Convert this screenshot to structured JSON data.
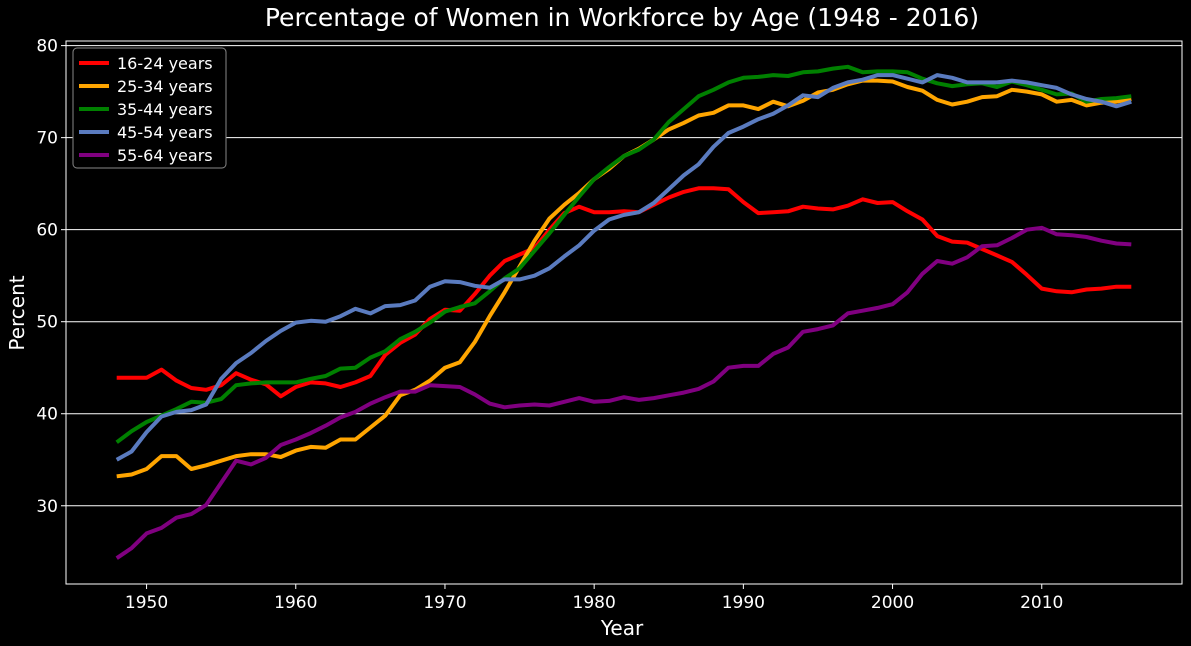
{
  "chart_data": {
    "type": "line",
    "title": "Percentage of Women in Workforce by Age (1948 - 2016)",
    "xlabel": "Year",
    "ylabel": "Percent",
    "xlim": [
      1944.6,
      2019.4
    ],
    "ylim": [
      21.5,
      80.5
    ],
    "xticks": [
      1950,
      1960,
      1970,
      1980,
      1990,
      2000,
      2010
    ],
    "yticks": [
      30,
      40,
      50,
      60,
      70,
      80
    ],
    "grid": "horizontal",
    "legend_position": "top-left",
    "x_start": 1948,
    "series": [
      {
        "name": "16-24 years",
        "color": "#ff0000",
        "values": [
          43.9,
          43.9,
          43.9,
          44.8,
          43.6,
          42.8,
          42.6,
          43.1,
          44.4,
          43.7,
          43.2,
          41.9,
          42.9,
          43.4,
          43.3,
          42.9,
          43.4,
          44.1,
          46.4,
          47.7,
          48.6,
          50.3,
          51.3,
          51.2,
          53.0,
          55.0,
          56.6,
          57.3,
          58.0,
          60.0,
          61.8,
          62.5,
          61.9,
          61.9,
          62.0,
          61.9,
          62.7,
          63.5,
          64.1,
          64.5,
          64.5,
          64.4,
          63.0,
          61.8,
          61.9,
          62.0,
          62.5,
          62.3,
          62.2,
          62.6,
          63.3,
          62.9,
          63.0,
          62.0,
          61.1,
          59.3,
          58.7,
          58.6,
          57.9,
          57.2,
          56.5,
          55.1,
          53.6,
          53.3,
          53.2,
          53.5,
          53.6,
          53.8,
          53.8
        ]
      },
      {
        "name": "25-34 years",
        "color": "#ffa500",
        "values": [
          33.2,
          33.4,
          34.0,
          35.4,
          35.4,
          34.0,
          34.4,
          34.9,
          35.4,
          35.6,
          35.6,
          35.3,
          36.0,
          36.4,
          36.3,
          37.2,
          37.2,
          38.5,
          39.8,
          42.0,
          42.6,
          43.6,
          45.0,
          45.6,
          47.8,
          50.6,
          53.2,
          56.0,
          58.8,
          61.2,
          62.7,
          64.0,
          65.5,
          66.6,
          68.0,
          68.8,
          69.8,
          70.9,
          71.6,
          72.4,
          72.7,
          73.5,
          73.5,
          73.1,
          73.9,
          73.4,
          74.0,
          74.9,
          75.2,
          75.8,
          76.2,
          76.2,
          76.1,
          75.5,
          75.1,
          74.1,
          73.6,
          73.9,
          74.4,
          74.5,
          75.2,
          75.0,
          74.7,
          73.9,
          74.1,
          73.5,
          73.8,
          73.9,
          74.2
        ]
      },
      {
        "name": "35-44 years",
        "color": "#008000",
        "values": [
          36.9,
          38.1,
          39.1,
          39.8,
          40.5,
          41.3,
          41.2,
          41.6,
          43.1,
          43.3,
          43.4,
          43.4,
          43.4,
          43.8,
          44.1,
          44.9,
          45.0,
          46.1,
          46.8,
          48.1,
          48.9,
          49.9,
          51.1,
          51.6,
          52.0,
          53.3,
          54.7,
          55.8,
          57.7,
          59.6,
          61.6,
          63.6,
          65.5,
          66.8,
          68.0,
          68.7,
          69.8,
          71.7,
          73.1,
          74.5,
          75.2,
          76.0,
          76.5,
          76.6,
          76.8,
          76.7,
          77.1,
          77.2,
          77.5,
          77.7,
          77.1,
          77.2,
          77.2,
          77.1,
          76.4,
          75.9,
          75.6,
          75.8,
          75.9,
          75.5,
          76.1,
          75.7,
          75.2,
          74.7,
          74.8,
          73.9,
          74.2,
          74.3,
          74.5
        ]
      },
      {
        "name": "45-54 years",
        "color": "#5a7bbf",
        "values": [
          35.0,
          35.9,
          38.0,
          39.7,
          40.2,
          40.4,
          41.0,
          43.8,
          45.5,
          46.6,
          47.9,
          49.0,
          49.9,
          50.1,
          50.0,
          50.6,
          51.4,
          50.9,
          51.7,
          51.8,
          52.3,
          53.8,
          54.4,
          54.3,
          53.9,
          53.7,
          54.6,
          54.6,
          55.0,
          55.8,
          57.1,
          58.3,
          59.9,
          61.1,
          61.6,
          61.9,
          62.9,
          64.4,
          65.9,
          67.1,
          69.0,
          70.5,
          71.2,
          72.0,
          72.6,
          73.5,
          74.6,
          74.4,
          75.4,
          76.0,
          76.3,
          76.8,
          76.8,
          76.4,
          76.0,
          76.8,
          76.5,
          76.0,
          76.0,
          76.0,
          76.2,
          76.0,
          75.7,
          75.4,
          74.7,
          74.2,
          73.9,
          73.4,
          73.9
        ]
      },
      {
        "name": "55-64 years",
        "color": "#800080",
        "values": [
          24.3,
          25.4,
          27.0,
          27.6,
          28.7,
          29.1,
          30.1,
          32.5,
          34.9,
          34.5,
          35.2,
          36.6,
          37.2,
          37.9,
          38.7,
          39.6,
          40.2,
          41.1,
          41.8,
          42.4,
          42.4,
          43.1,
          43.0,
          42.9,
          42.1,
          41.1,
          40.7,
          40.9,
          41.0,
          40.9,
          41.3,
          41.7,
          41.3,
          41.4,
          41.8,
          41.5,
          41.7,
          42.0,
          42.3,
          42.7,
          43.5,
          45.0,
          45.2,
          45.2,
          46.5,
          47.2,
          48.9,
          49.2,
          49.6,
          50.9,
          51.2,
          51.5,
          51.9,
          53.2,
          55.2,
          56.6,
          56.3,
          57.0,
          58.2,
          58.3,
          59.1,
          60.0,
          60.2,
          59.5,
          59.4,
          59.2,
          58.8,
          58.5,
          58.4
        ]
      }
    ]
  }
}
